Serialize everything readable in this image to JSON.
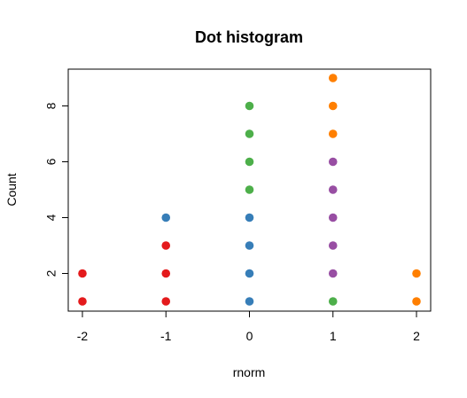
{
  "chart_data": {
    "type": "scatter",
    "title": "Dot histogram",
    "xlabel": "rnorm",
    "ylabel": "Count",
    "x_ticks": [
      "-2",
      "-1",
      "0",
      "1",
      "2"
    ],
    "y_ticks": [
      "2",
      "4",
      "6",
      "8"
    ],
    "xlim": [
      -2.0,
      2.0
    ],
    "ylim": [
      1,
      9
    ],
    "grid": false,
    "legend": "none",
    "colors": [
      "#e41a1c",
      "#377eb8",
      "#4daf4a",
      "#984ea3",
      "#ff7f00"
    ],
    "points": [
      {
        "x": -2,
        "y": 1,
        "color": "#e41a1c"
      },
      {
        "x": -2,
        "y": 2,
        "color": "#e41a1c"
      },
      {
        "x": -1,
        "y": 1,
        "color": "#e41a1c"
      },
      {
        "x": -1,
        "y": 2,
        "color": "#e41a1c"
      },
      {
        "x": -1,
        "y": 3,
        "color": "#e41a1c"
      },
      {
        "x": -1,
        "y": 4,
        "color": "#377eb8"
      },
      {
        "x": 0,
        "y": 1,
        "color": "#377eb8"
      },
      {
        "x": 0,
        "y": 2,
        "color": "#377eb8"
      },
      {
        "x": 0,
        "y": 3,
        "color": "#377eb8"
      },
      {
        "x": 0,
        "y": 4,
        "color": "#377eb8"
      },
      {
        "x": 0,
        "y": 5,
        "color": "#4daf4a"
      },
      {
        "x": 0,
        "y": 6,
        "color": "#4daf4a"
      },
      {
        "x": 0,
        "y": 7,
        "color": "#4daf4a"
      },
      {
        "x": 0,
        "y": 8,
        "color": "#4daf4a"
      },
      {
        "x": 1,
        "y": 1,
        "color": "#4daf4a"
      },
      {
        "x": 1,
        "y": 2,
        "color": "#984ea3"
      },
      {
        "x": 1,
        "y": 3,
        "color": "#984ea3"
      },
      {
        "x": 1,
        "y": 4,
        "color": "#984ea3"
      },
      {
        "x": 1,
        "y": 5,
        "color": "#984ea3"
      },
      {
        "x": 1,
        "y": 6,
        "color": "#984ea3"
      },
      {
        "x": 1,
        "y": 7,
        "color": "#ff7f00"
      },
      {
        "x": 1,
        "y": 8,
        "color": "#ff7f00"
      },
      {
        "x": 1,
        "y": 9,
        "color": "#ff7f00"
      },
      {
        "x": 2,
        "y": 1,
        "color": "#ff7f00"
      },
      {
        "x": 2,
        "y": 2,
        "color": "#ff7f00"
      }
    ]
  }
}
